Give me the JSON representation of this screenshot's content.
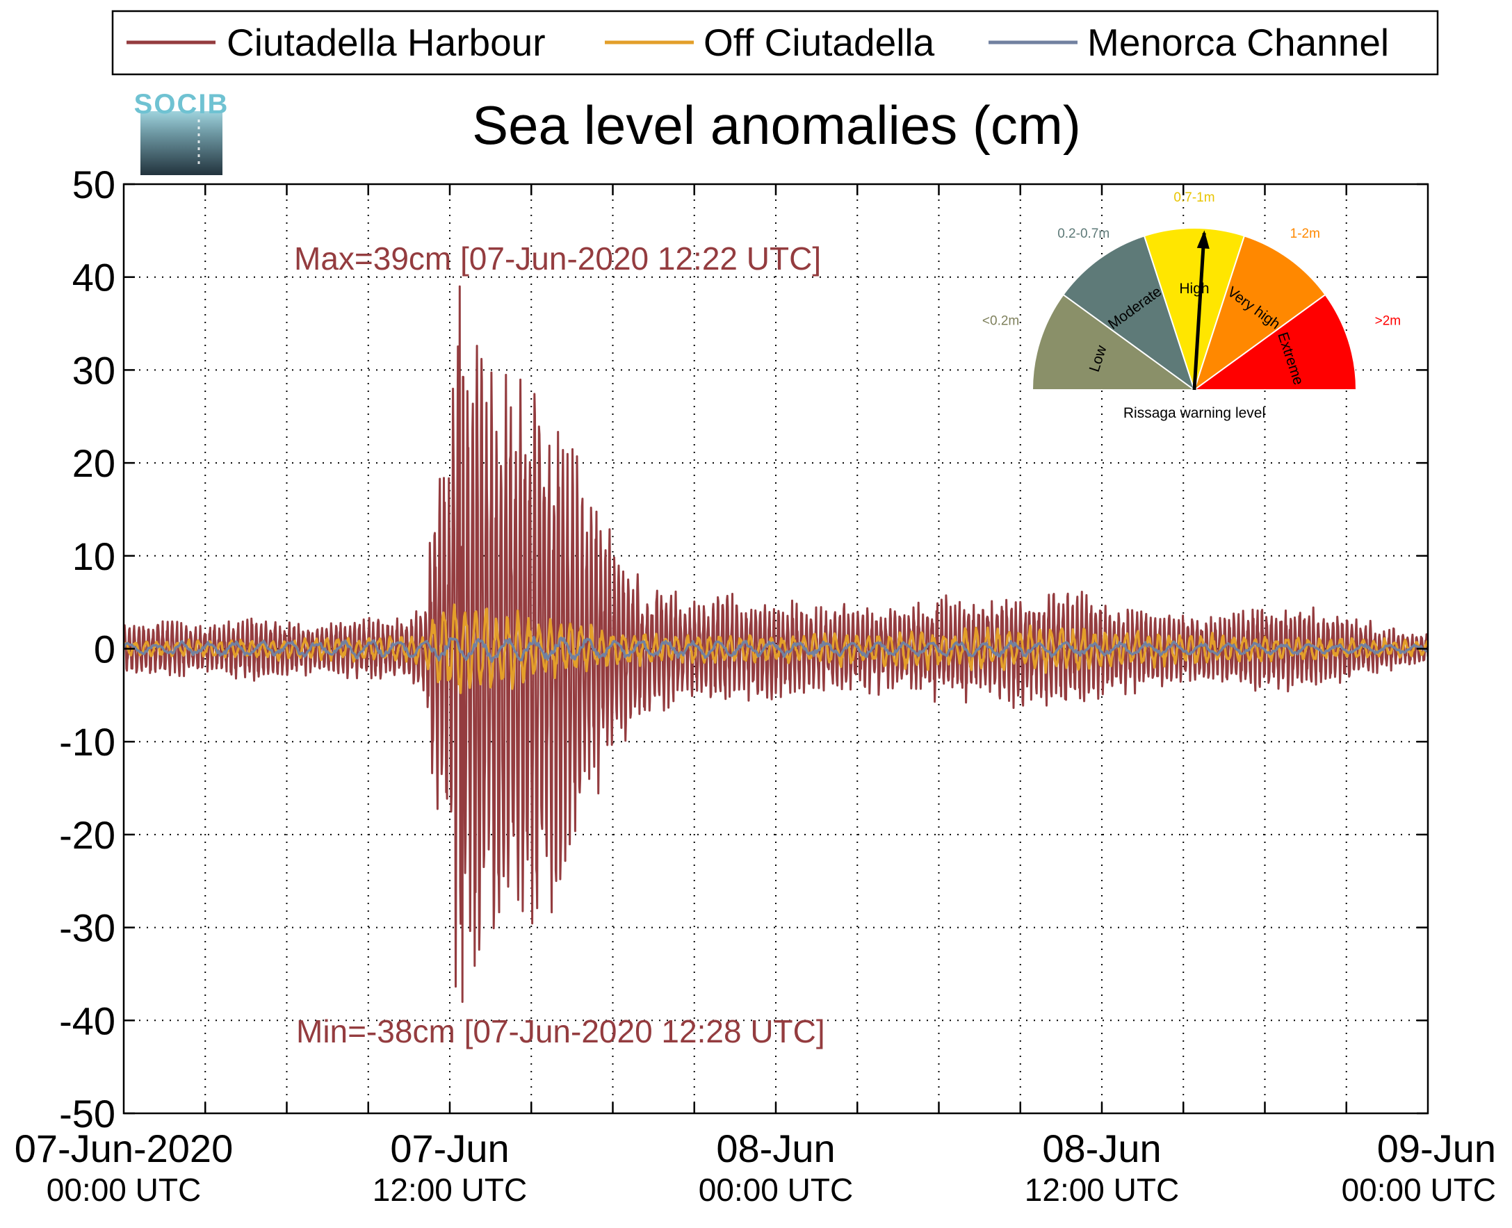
{
  "colors": {
    "harbour": "#943c3f",
    "offshore": "#e39f2a",
    "channel": "#7281a0",
    "grid": "#000000"
  },
  "logo": {
    "text": "SOCIB"
  },
  "chart_data": {
    "type": "line",
    "title": "Sea level anomalies (cm)",
    "xlabel": "",
    "ylabel": "",
    "ylim": [
      -50,
      50
    ],
    "yticks": [
      -50,
      -40,
      -30,
      -20,
      -10,
      0,
      10,
      20,
      30,
      40,
      50
    ],
    "xlim_hours": [
      0,
      48
    ],
    "xticks": [
      {
        "hour": 0,
        "line1": "07-Jun-2020",
        "line2": "00:00 UTC"
      },
      {
        "hour": 12,
        "line1": "07-Jun",
        "line2": "12:00 UTC"
      },
      {
        "hour": 24,
        "line1": "08-Jun",
        "line2": "00:00 UTC"
      },
      {
        "hour": 36,
        "line1": "08-Jun",
        "line2": "12:00 UTC"
      },
      {
        "hour": 48,
        "line1": "09-Jun",
        "line2": "00:00 UTC"
      }
    ],
    "grid": true,
    "legend": {
      "placement": "top",
      "entries": [
        "Ciutadella Harbour",
        "Off Ciutadella",
        "Menorca Channel"
      ]
    },
    "annotations": {
      "max": "Max=39cm [07-Jun-2020 12:22 UTC]",
      "min": "Min=-38cm [07-Jun-2020 12:28 UTC]"
    },
    "series": [
      {
        "name": "Ciutadella Harbour",
        "envelope_hours": [
          0,
          1,
          2,
          3,
          4,
          5,
          6,
          7,
          8,
          9,
          10,
          11,
          11.5,
          12,
          12.3,
          12.5,
          13,
          14,
          15,
          16,
          17,
          18,
          19,
          20,
          21,
          22,
          24,
          26,
          28,
          30,
          32,
          34,
          35,
          36,
          38,
          40,
          42,
          44,
          46,
          48
        ],
        "envelope_cm": [
          2.5,
          3,
          3,
          2.5,
          3,
          3.5,
          3,
          2.5,
          3,
          3.5,
          3,
          4,
          18,
          22,
          39,
          36,
          33,
          30,
          28,
          26,
          18,
          12,
          8,
          6,
          5,
          6,
          5,
          4.5,
          4.5,
          5,
          5.5,
          6,
          7,
          5,
          4,
          3.5,
          4.5,
          4,
          2.5,
          1.5
        ],
        "max_cm": 39,
        "min_cm": -38
      },
      {
        "name": "Off Ciutadella",
        "envelope_hours": [
          0,
          4,
          8,
          11,
          11.5,
          12,
          13,
          14,
          15,
          16,
          18,
          20,
          24,
          30,
          34,
          36,
          40,
          44,
          48
        ],
        "envelope_cm": [
          0.8,
          1,
          1.2,
          1.5,
          4,
          5.5,
          4.5,
          4,
          3.5,
          3,
          2,
          1.5,
          1.5,
          2,
          2.5,
          2,
          1.5,
          1.2,
          0.8
        ]
      },
      {
        "name": "Menorca Channel",
        "envelope_hours": [
          0,
          6,
          11,
          12,
          14,
          18,
          24,
          30,
          36,
          42,
          48
        ],
        "envelope_cm": [
          0.6,
          0.8,
          1,
          1.4,
          1.2,
          1,
          0.8,
          0.8,
          0.7,
          0.6,
          0.4
        ]
      }
    ]
  },
  "gauge": {
    "title": "Rissaga warning level",
    "needle_level": "High",
    "needle_fraction": 0.52,
    "sectors": [
      {
        "name": "Low",
        "range": "<0.2m",
        "color": "#8a9069",
        "range_color": "#7e805c"
      },
      {
        "name": "Moderate",
        "range": "0.2-0.7m",
        "color": "#5e7a78",
        "range_color": "#5e7a78"
      },
      {
        "name": "High",
        "range": "0.7-1m",
        "color": "#ffe600",
        "range_color": "#e8c400"
      },
      {
        "name": "Very high",
        "range": "1-2m",
        "color": "#ff8800",
        "range_color": "#ff8800"
      },
      {
        "name": "Extreme",
        "range": ">2m",
        "color": "#ff0000",
        "range_color": "#ff0000"
      }
    ]
  }
}
